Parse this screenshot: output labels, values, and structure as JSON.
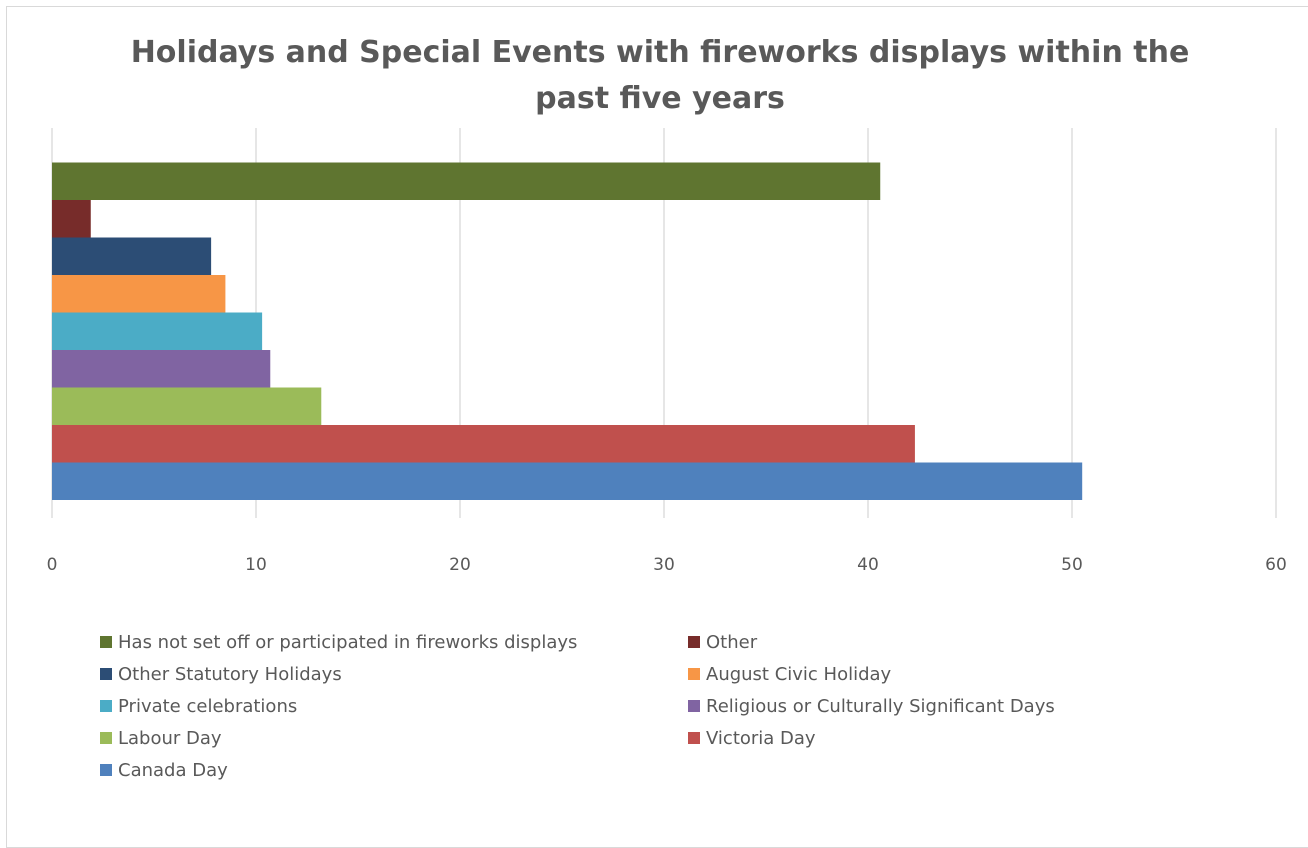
{
  "chart_data": {
    "type": "bar",
    "orientation": "horizontal",
    "title": "Holidays and Special Events with fireworks displays within the past five years",
    "xlim": [
      0,
      60
    ],
    "xticks": [
      "0",
      "10",
      "20",
      "30",
      "40",
      "50",
      "60"
    ],
    "grid": "vertical",
    "legend_position": "bottom",
    "series": [
      {
        "name": "Canada Day",
        "value": 50.5,
        "color": "#4f81bd"
      },
      {
        "name": "Victoria Day",
        "value": 42.3,
        "color": "#c0504d"
      },
      {
        "name": "Labour Day",
        "value": 13.2,
        "color": "#9bbb59"
      },
      {
        "name": "Religious or Culturally Significant Days",
        "value": 10.7,
        "color": "#8064a2"
      },
      {
        "name": "Private celebrations",
        "value": 10.3,
        "color": "#4bacc6"
      },
      {
        "name": "August Civic Holiday",
        "value": 8.5,
        "color": "#f79646"
      },
      {
        "name": "Other Statutory Holidays",
        "value": 7.8,
        "color": "#2c4d75"
      },
      {
        "name": "Other",
        "value": 1.9,
        "color": "#772c2a"
      },
      {
        "name": "Has not set off or participated in fireworks displays",
        "value": 40.6,
        "color": "#5f7530"
      }
    ],
    "legend_order": [
      "Has not set off or participated in fireworks displays",
      "Other",
      "Other Statutory Holidays",
      "August Civic Holiday",
      "Private celebrations",
      "Religious or Culturally Significant Days",
      "Labour Day",
      "Victoria Day",
      "Canada Day"
    ]
  }
}
